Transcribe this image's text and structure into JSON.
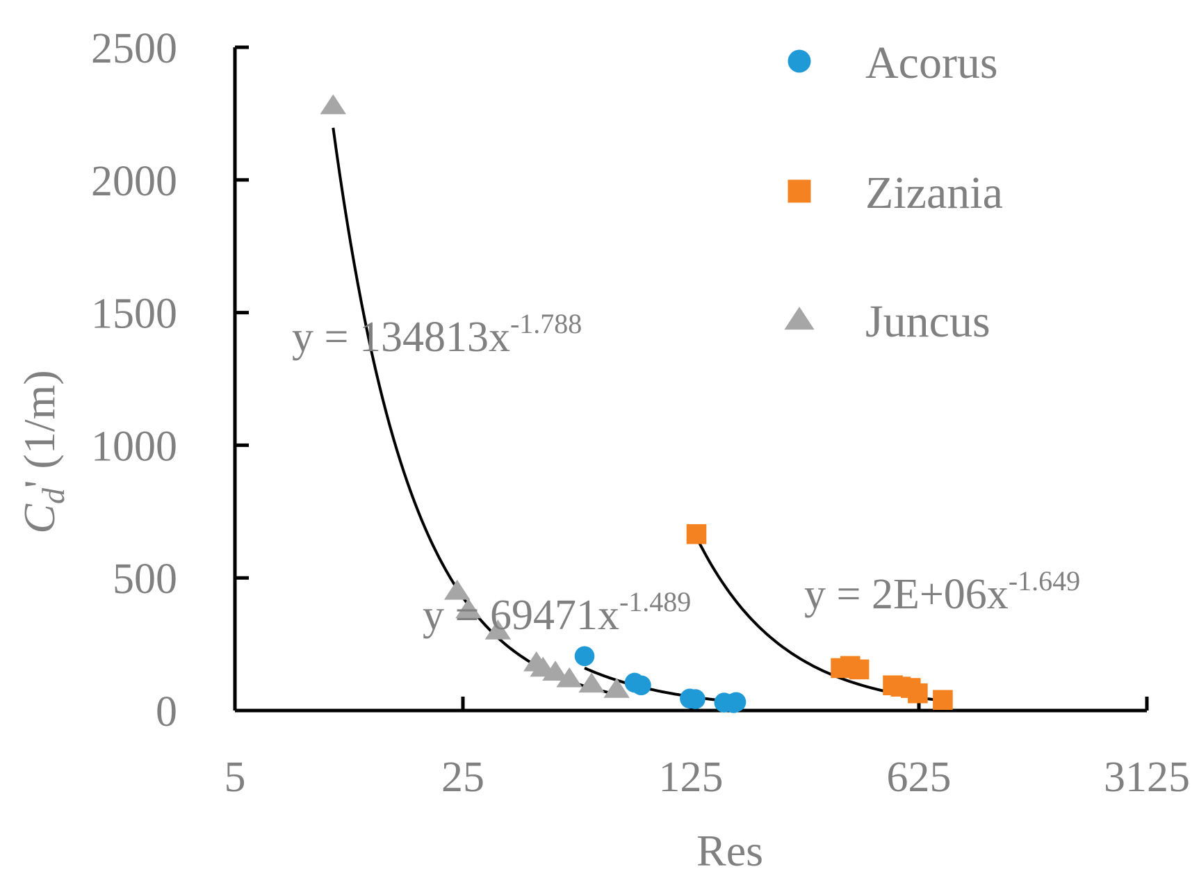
{
  "chart_data": {
    "type": "scatter",
    "x_scale": "log",
    "xlabel": "Res",
    "ylabel": {
      "main": "C",
      "subscript": "d",
      "rest": "' (1/m)"
    },
    "xlim": [
      5,
      3125
    ],
    "ylim": [
      0,
      2500
    ],
    "x_ticks": [
      5,
      25,
      125,
      625,
      3125
    ],
    "y_ticks": [
      0,
      500,
      1000,
      1500,
      2000,
      2500
    ],
    "grid": false,
    "legend_position": "top-right",
    "colors": {
      "Acorus": "#1f9ad6",
      "Zizania": "#f58220",
      "Juncus": "#a6a6a6",
      "axis": "#000000",
      "text": "#808080"
    },
    "series": [
      {
        "name": "Acorus",
        "marker": "circle",
        "x": [
          59,
          84,
          88,
          124,
          129,
          158,
          169,
          172
        ],
        "y": [
          205,
          105,
          95,
          45,
          43,
          30,
          28,
          32
        ],
        "fit": {
          "a": 69471,
          "b": -1.489,
          "x_range": [
            59,
            172
          ]
        },
        "equation": {
          "base": "y = 69471x",
          "exp": "-1.489"
        }
      },
      {
        "name": "Zizania",
        "marker": "square",
        "x": [
          130,
          360,
          385,
          410,
          520,
          550,
          590,
          620,
          740
        ],
        "y": [
          665,
          160,
          168,
          155,
          95,
          90,
          85,
          65,
          40
        ],
        "fit": {
          "a": 2000000,
          "b": -1.649,
          "x_range": [
            130,
            740
          ]
        },
        "equation": {
          "base": "y = 2E+06x",
          "exp": "-1.649"
        }
      },
      {
        "name": "Juncus",
        "marker": "triangle",
        "x": [
          10,
          24,
          26,
          32,
          42,
          44,
          48,
          53,
          62,
          74
        ],
        "y": [
          2280,
          450,
          380,
          300,
          180,
          160,
          145,
          120,
          100,
          80
        ],
        "fit": {
          "a": 134813,
          "b": -1.788,
          "x_range": [
            10,
            74
          ]
        },
        "equation": {
          "base": "y = 134813x",
          "exp": "-1.788"
        }
      }
    ]
  }
}
